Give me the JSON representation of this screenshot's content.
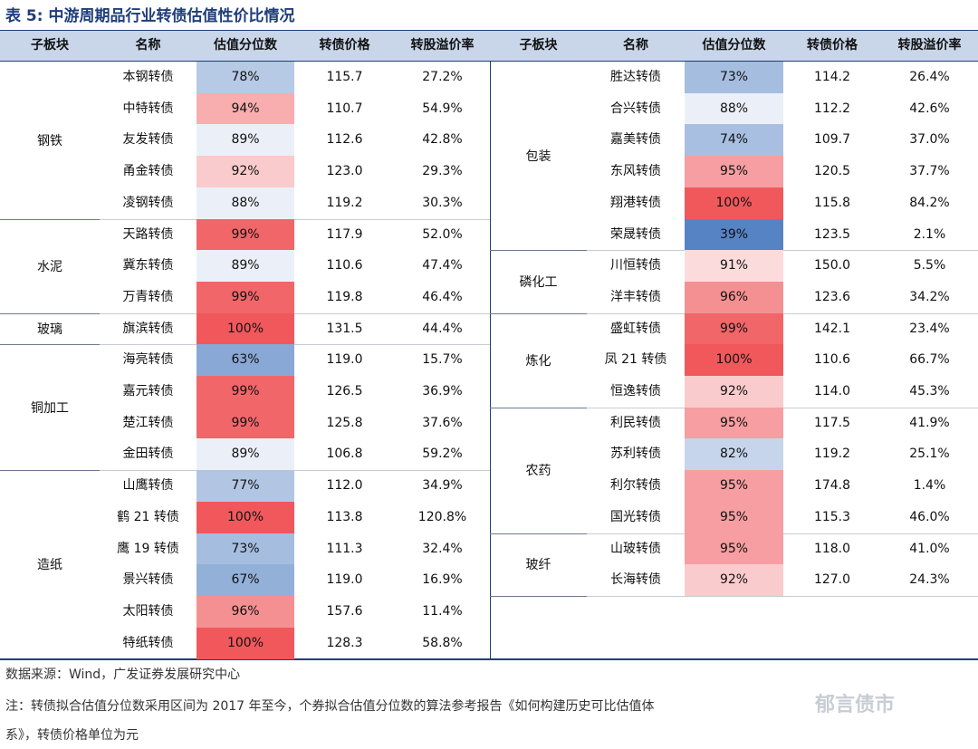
{
  "title": "表 5:  中游周期品行业转债估值性价比情况",
  "headers": [
    "子板块",
    "名称",
    "估值分位数",
    "转债价格",
    "转股溢价率"
  ],
  "left": {
    "groups": [
      {
        "name": "钢铁",
        "rows": [
          {
            "name": "本钢转债",
            "pct": "78%",
            "pctv": 78,
            "price": "115.7",
            "prem": "27.2%"
          },
          {
            "name": "中特转债",
            "pct": "94%",
            "pctv": 94,
            "price": "110.7",
            "prem": "54.9%"
          },
          {
            "name": "友发转债",
            "pct": "89%",
            "pctv": 89,
            "price": "112.6",
            "prem": "42.8%"
          },
          {
            "name": "甬金转债",
            "pct": "92%",
            "pctv": 92,
            "price": "123.0",
            "prem": "29.3%"
          },
          {
            "name": "凌钢转债",
            "pct": "88%",
            "pctv": 88,
            "price": "119.2",
            "prem": "30.3%"
          }
        ]
      },
      {
        "name": "水泥",
        "rows": [
          {
            "name": "天路转债",
            "pct": "99%",
            "pctv": 99,
            "price": "117.9",
            "prem": "52.0%"
          },
          {
            "name": "冀东转债",
            "pct": "89%",
            "pctv": 89,
            "price": "110.6",
            "prem": "47.4%"
          },
          {
            "name": "万青转债",
            "pct": "99%",
            "pctv": 99,
            "price": "119.8",
            "prem": "46.4%"
          }
        ]
      },
      {
        "name": "玻璃",
        "rows": [
          {
            "name": "旗滨转债",
            "pct": "100%",
            "pctv": 100,
            "price": "131.5",
            "prem": "44.4%"
          }
        ]
      },
      {
        "name": "铜加工",
        "rows": [
          {
            "name": "海亮转债",
            "pct": "63%",
            "pctv": 63,
            "price": "119.0",
            "prem": "15.7%"
          },
          {
            "name": "嘉元转债",
            "pct": "99%",
            "pctv": 99,
            "price": "126.5",
            "prem": "36.9%"
          },
          {
            "name": "楚江转债",
            "pct": "99%",
            "pctv": 99,
            "price": "125.8",
            "prem": "37.6%"
          },
          {
            "name": "金田转债",
            "pct": "89%",
            "pctv": 89,
            "price": "106.8",
            "prem": "59.2%"
          }
        ]
      },
      {
        "name": "造纸",
        "rows": [
          {
            "name": "山鹰转债",
            "pct": "77%",
            "pctv": 77,
            "price": "112.0",
            "prem": "34.9%"
          },
          {
            "name": "鹤 21 转债",
            "pct": "100%",
            "pctv": 100,
            "price": "113.8",
            "prem": "120.8%"
          },
          {
            "name": "鹰 19 转债",
            "pct": "73%",
            "pctv": 73,
            "price": "111.3",
            "prem": "32.4%"
          },
          {
            "name": "景兴转债",
            "pct": "67%",
            "pctv": 67,
            "price": "119.0",
            "prem": "16.9%"
          },
          {
            "name": "太阳转债",
            "pct": "96%",
            "pctv": 96,
            "price": "157.6",
            "prem": "11.4%"
          },
          {
            "name": "特纸转债",
            "pct": "100%",
            "pctv": 100,
            "price": "128.3",
            "prem": "58.8%"
          }
        ]
      }
    ]
  },
  "right": {
    "groups": [
      {
        "name": "包装",
        "rows": [
          {
            "name": "胜达转债",
            "pct": "73%",
            "pctv": 73,
            "price": "114.2",
            "prem": "26.4%"
          },
          {
            "name": "合兴转债",
            "pct": "88%",
            "pctv": 88,
            "price": "112.2",
            "prem": "42.6%"
          },
          {
            "name": "嘉美转债",
            "pct": "74%",
            "pctv": 74,
            "price": "109.7",
            "prem": "37.0%"
          },
          {
            "name": "东风转债",
            "pct": "95%",
            "pctv": 95,
            "price": "120.5",
            "prem": "37.7%"
          },
          {
            "name": "翔港转债",
            "pct": "100%",
            "pctv": 100,
            "price": "115.8",
            "prem": "84.2%"
          },
          {
            "name": "荣晟转债",
            "pct": "39%",
            "pctv": 39,
            "price": "123.5",
            "prem": "2.1%"
          }
        ]
      },
      {
        "name": "磷化工",
        "rows": [
          {
            "name": "川恒转债",
            "pct": "91%",
            "pctv": 91,
            "price": "150.0",
            "prem": "5.5%"
          },
          {
            "name": "洋丰转债",
            "pct": "96%",
            "pctv": 96,
            "price": "123.6",
            "prem": "34.2%"
          }
        ]
      },
      {
        "name": "炼化",
        "rows": [
          {
            "name": "盛虹转债",
            "pct": "99%",
            "pctv": 99,
            "price": "142.1",
            "prem": "23.4%"
          },
          {
            "name": "凤 21 转债",
            "pct": "100%",
            "pctv": 100,
            "price": "110.6",
            "prem": "66.7%"
          },
          {
            "name": "恒逸转债",
            "pct": "92%",
            "pctv": 92,
            "price": "114.0",
            "prem": "45.3%"
          }
        ]
      },
      {
        "name": "农药",
        "rows": [
          {
            "name": "利民转债",
            "pct": "95%",
            "pctv": 95,
            "price": "117.5",
            "prem": "41.9%"
          },
          {
            "name": "苏利转债",
            "pct": "82%",
            "pctv": 82,
            "price": "119.2",
            "prem": "25.1%"
          },
          {
            "name": "利尔转债",
            "pct": "95%",
            "pctv": 95,
            "price": "174.8",
            "prem": "1.4%"
          },
          {
            "name": "国光转债",
            "pct": "95%",
            "pctv": 95,
            "price": "115.3",
            "prem": "46.0%"
          }
        ]
      },
      {
        "name": "玻纤",
        "rows": [
          {
            "name": "山玻转债",
            "pct": "95%",
            "pctv": 95,
            "price": "118.0",
            "prem": "41.0%"
          },
          {
            "name": "长海转债",
            "pct": "92%",
            "pctv": 92,
            "price": "127.0",
            "prem": "24.3%"
          }
        ]
      }
    ]
  },
  "footer": {
    "source": "数据来源：Wind，广发证券发展研究中心",
    "note1": "注：转债拟合估值分位数采用区间为 2017 年至今，个券拟合估值分位数的算法参考报告《如何构建历史可比估值体",
    "note2": "系》，转债价格单位为元"
  },
  "watermark": "郁言债市"
}
